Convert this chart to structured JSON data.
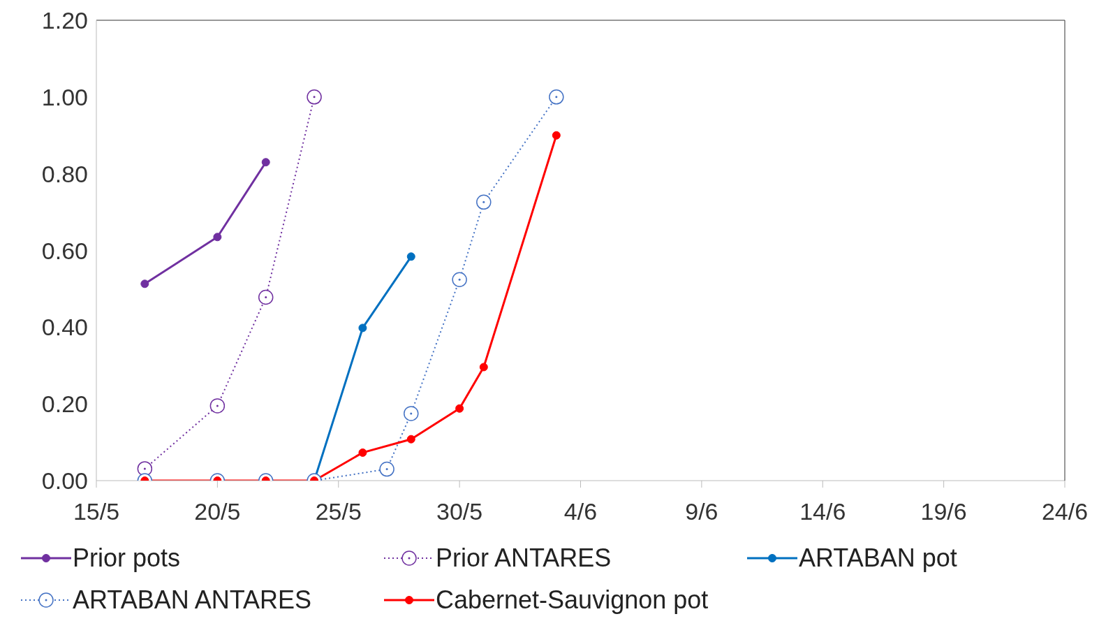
{
  "chart_data": {
    "type": "line",
    "x": [
      "--05-17",
      "--05-20",
      "--05-22",
      "--05-24",
      "--05-26",
      "--05-27",
      "--05-28",
      "--05-30",
      "--05-31",
      "--06-03"
    ],
    "xlim": [
      "--05-15",
      "--06-24"
    ],
    "xticks": [
      {
        "value": "--05-15",
        "label": "15/5"
      },
      {
        "value": "--05-20",
        "label": "20/5"
      },
      {
        "value": "--05-25",
        "label": "25/5"
      },
      {
        "value": "--05-30",
        "label": "30/5"
      },
      {
        "value": "--06-04",
        "label": "4/6"
      },
      {
        "value": "--06-09",
        "label": "9/6"
      },
      {
        "value": "--06-14",
        "label": "14/6"
      },
      {
        "value": "--06-19",
        "label": "19/6"
      },
      {
        "value": "--06-24",
        "label": "24/6"
      }
    ],
    "ylim": [
      0,
      1.2
    ],
    "yticks": [
      {
        "value": 0,
        "label": "0.00"
      },
      {
        "value": 0.2,
        "label": "0.20"
      },
      {
        "value": 0.4,
        "label": "0.40"
      },
      {
        "value": 0.6,
        "label": "0.60"
      },
      {
        "value": 0.8,
        "label": "0.80"
      },
      {
        "value": 1,
        "label": "1.00"
      },
      {
        "value": 1.2,
        "label": "1.20"
      }
    ],
    "legend": "bottom",
    "marker": "circle",
    "series": [
      {
        "name": "Prior pots",
        "color": "#7030a0",
        "line_style": "solid",
        "values": [
          0.513,
          0.635,
          0.83,
          null,
          null,
          null,
          null,
          null,
          null,
          null
        ]
      },
      {
        "name": "Prior ANTARES",
        "color": "#7030a0",
        "line_style": "dotted",
        "values": [
          0.031,
          0.195,
          0.478,
          1.0,
          null,
          null,
          null,
          null,
          null,
          null
        ]
      },
      {
        "name": "ARTABAN pot",
        "color": "#0070c0",
        "line_style": "solid",
        "values": [
          null,
          null,
          null,
          0,
          0.398,
          null,
          0.584,
          null,
          null,
          null
        ]
      },
      {
        "name": "ARTABAN ANTARES",
        "color": "#4472c4",
        "line_style": "dotted",
        "values": [
          0,
          0,
          0,
          0,
          null,
          0.03,
          0.175,
          0.524,
          0.726,
          1.0
        ]
      },
      {
        "name": "Cabernet-Sauvignon pot",
        "color": "#ff0000",
        "line_style": "solid",
        "values": [
          0,
          0,
          0,
          0,
          0.073,
          null,
          0.108,
          0.188,
          0.296,
          0.9
        ]
      }
    ]
  }
}
